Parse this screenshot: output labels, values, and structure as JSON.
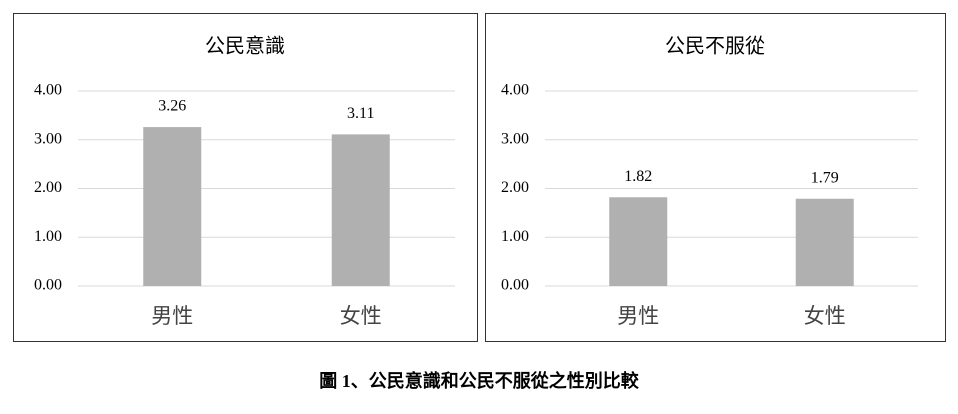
{
  "chart_data": [
    {
      "type": "bar",
      "title": "公民意識",
      "categories": [
        "男性",
        "女性"
      ],
      "values": [
        3.26,
        3.11
      ],
      "color": "#b0b0b0",
      "ylim": [
        0,
        4
      ],
      "yticks": [
        {
          "value": 0,
          "label": "0.00"
        },
        {
          "value": 1,
          "label": "1.00"
        },
        {
          "value": 2,
          "label": "2.00"
        },
        {
          "value": 3,
          "label": "3.00"
        },
        {
          "value": 4,
          "label": "4.00"
        }
      ],
      "grid": true
    },
    {
      "type": "bar",
      "title": "公民不服從",
      "categories": [
        "男性",
        "女性"
      ],
      "values": [
        1.82,
        1.79
      ],
      "color": "#b0b0b0",
      "ylim": [
        0,
        4
      ],
      "yticks": [
        {
          "value": 0,
          "label": "0.00"
        },
        {
          "value": 1,
          "label": "1.00"
        },
        {
          "value": 2,
          "label": "2.00"
        },
        {
          "value": 3,
          "label": "3.00"
        },
        {
          "value": 4,
          "label": "4.00"
        }
      ],
      "grid": true
    }
  ],
  "caption": "圖 1、公民意識和公民不服從之性別比較"
}
